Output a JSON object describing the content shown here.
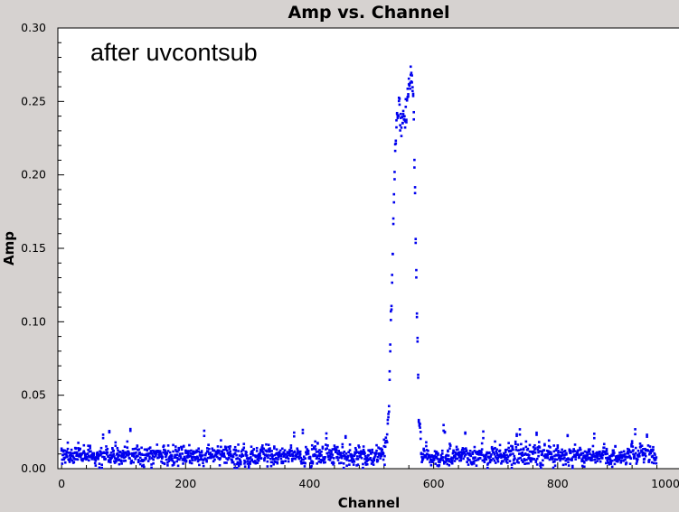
{
  "chart_data": {
    "type": "scatter",
    "title": "Amp vs. Channel",
    "xlabel": "Channel",
    "ylabel": "Amp",
    "annotation": "after uvcontsub",
    "xlim": [
      -6,
      1000
    ],
    "ylim": [
      0,
      0.3
    ],
    "x_ticks": [
      0,
      200,
      400,
      600,
      800,
      1000
    ],
    "x_tick_labels": [
      "0",
      "200",
      "400",
      "600",
      "800",
      "1000"
    ],
    "y_ticks": [
      0.0,
      0.05,
      0.1,
      0.15,
      0.2,
      0.25,
      0.3
    ],
    "y_tick_labels": [
      "0.00",
      "0.05",
      "0.10",
      "0.15",
      "0.20",
      "0.25",
      "0.30"
    ],
    "grid": false,
    "point_color": "#0000ee",
    "series": [
      {
        "channel_range": [
          0,
          959
        ],
        "noise_baseline": {
          "ranges": [
            [
              0,
              520
            ],
            [
              580,
              959
            ]
          ],
          "mean": 0.009,
          "spread": 0.006,
          "max": 0.026
        },
        "line_profile": [
          [
            520,
            0.012
          ],
          [
            524,
            0.016
          ],
          [
            526,
            0.025
          ],
          [
            528,
            0.045
          ],
          [
            530,
            0.075
          ],
          [
            532,
            0.11
          ],
          [
            534,
            0.15
          ],
          [
            536,
            0.185
          ],
          [
            538,
            0.215
          ],
          [
            540,
            0.235
          ],
          [
            544,
            0.245
          ],
          [
            548,
            0.24
          ],
          [
            552,
            0.238
          ],
          [
            556,
            0.245
          ],
          [
            560,
            0.258
          ],
          [
            564,
            0.265
          ],
          [
            566,
            0.262
          ],
          [
            568,
            0.24
          ],
          [
            570,
            0.19
          ],
          [
            572,
            0.13
          ],
          [
            574,
            0.08
          ],
          [
            576,
            0.04
          ],
          [
            578,
            0.02
          ],
          [
            580,
            0.012
          ]
        ]
      }
    ]
  }
}
